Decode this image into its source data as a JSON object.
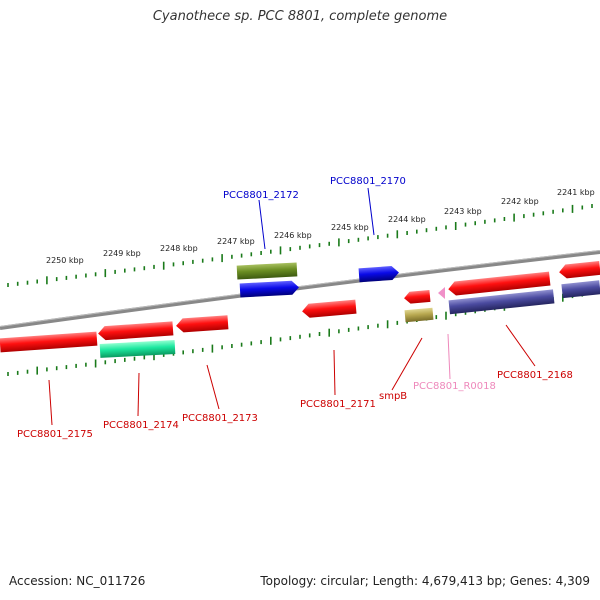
{
  "title": "Cyanothece sp. PCC 8801, complete genome",
  "footer": {
    "accession": "Accession: NC_011726",
    "summary": "Topology: circular; Length: 4,679,413 bp; Genes: 4,309"
  },
  "ruler_labels": [
    "2250 kbp",
    "2249 kbp",
    "2248 kbp",
    "2247 kbp",
    "2246 kbp",
    "2245 kbp",
    "2244 kbp",
    "2243 kbp",
    "2242 kbp",
    "2241 kbp"
  ],
  "genes": [
    {
      "label": "PCC8801_2172",
      "color": "#0000cc"
    },
    {
      "label": "PCC8801_2170",
      "color": "#0000cc"
    },
    {
      "label": "PCC8801_2175",
      "color": "#cc0000"
    },
    {
      "label": "PCC8801_2174",
      "color": "#cc0000"
    },
    {
      "label": "PCC8801_2173",
      "color": "#cc0000"
    },
    {
      "label": "PCC8801_2171",
      "color": "#cc0000"
    },
    {
      "label": "smpB",
      "color": "#cc0000"
    },
    {
      "label": "PCC8801_R0018",
      "color": "#ee88bb"
    },
    {
      "label": "PCC8801_2168",
      "color": "#cc0000"
    }
  ],
  "colors": {
    "cds_red": "#ff1010",
    "blue": "#0a0ae8",
    "olive": "#6b8e23",
    "tan": "#b8a850",
    "teal": "#1de8a0",
    "slate": "#4b4ba0",
    "pink": "#f090c8",
    "ruler": "#1a7a1a",
    "backbone": "#888888"
  }
}
